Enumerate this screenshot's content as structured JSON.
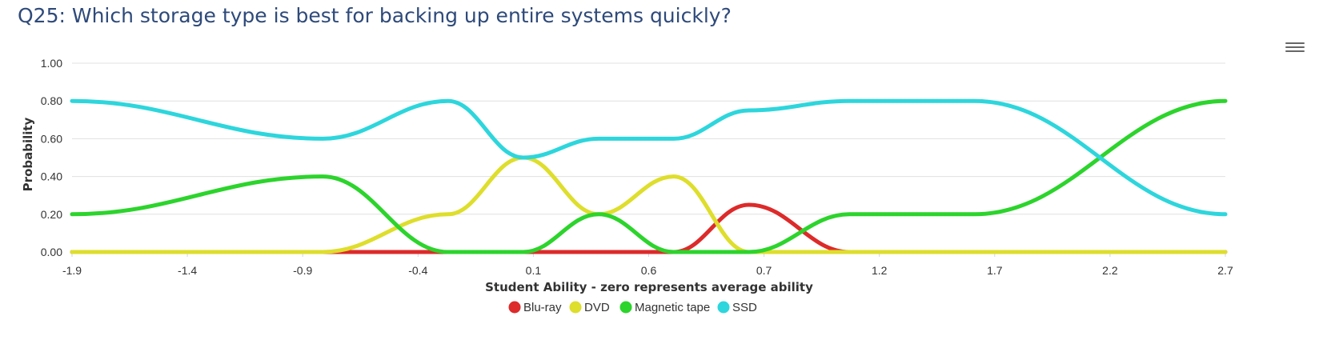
{
  "title": "Q25: Which storage type is best for backing up entire systems quickly?",
  "icons": {
    "menu": "hamburger-menu-icon"
  },
  "chart_data": {
    "type": "line",
    "title": "Q25: Which storage type is best for backing up entire systems quickly?",
    "xlabel": "Student Ability - zero represents average ability",
    "ylabel": "Probability",
    "xlim": [
      -1.9,
      2.7
    ],
    "ylim": [
      0,
      1
    ],
    "x_ticks": [
      "-1.9",
      "-1.4",
      "-0.9",
      "-0.4",
      "0.1",
      "0.6",
      "0.7",
      "1.2",
      "1.7",
      "2.2",
      "2.7"
    ],
    "y_ticks": [
      "0.00",
      "0.20",
      "0.40",
      "0.60",
      "0.80",
      "1.00"
    ],
    "grid": true,
    "legend_position": "bottom-center",
    "x": [
      -1.9,
      -0.9,
      -0.4,
      -0.1,
      0.2,
      0.5,
      0.8,
      1.2,
      1.7,
      2.7
    ],
    "series": [
      {
        "name": "Blu-ray",
        "color": "#dd2a2a",
        "values": [
          0,
          0,
          0,
          0,
          0,
          0,
          0.25,
          0,
          0,
          0
        ]
      },
      {
        "name": "DVD",
        "color": "#dede2c",
        "values": [
          0,
          0,
          0.2,
          0.5,
          0.2,
          0.4,
          0,
          0,
          0,
          0
        ]
      },
      {
        "name": "Magnetic tape",
        "color": "#2cd42c",
        "values": [
          0.2,
          0.4,
          0,
          0,
          0.2,
          0,
          0,
          0.2,
          0.2,
          0.8
        ]
      },
      {
        "name": "SSD",
        "color": "#2dd6dc",
        "values": [
          0.8,
          0.6,
          0.8,
          0.5,
          0.6,
          0.6,
          0.75,
          0.8,
          0.8,
          0.2
        ]
      }
    ]
  }
}
